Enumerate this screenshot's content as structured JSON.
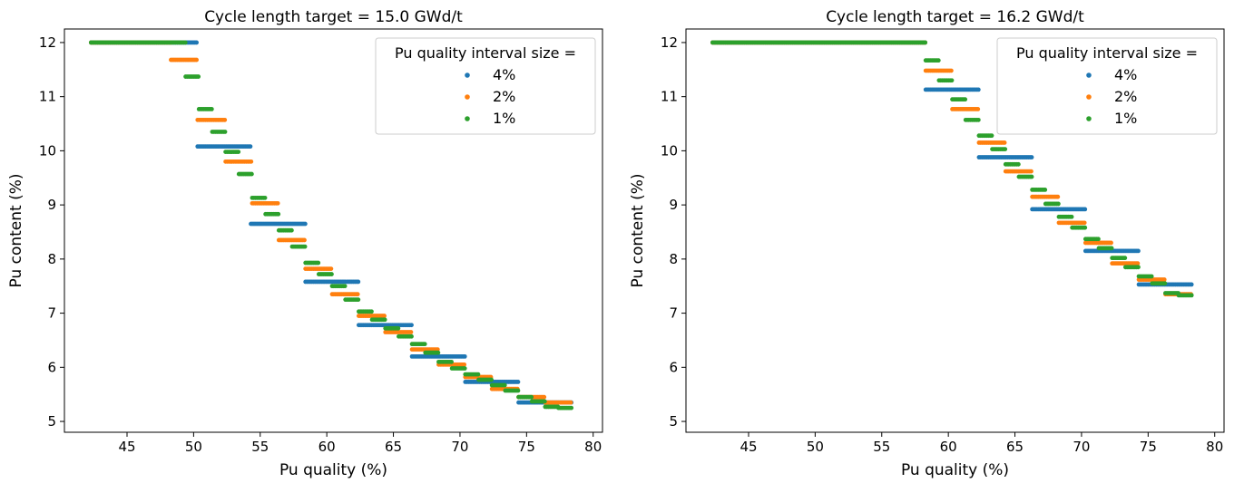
{
  "chart_data": [
    {
      "type": "scatter",
      "title": "Cycle length target = 15.0 GWd/t",
      "xlabel": "Pu quality (%)",
      "ylabel": "Pu content (%)",
      "xlim": [
        40.3,
        80.7
      ],
      "ylim": [
        4.8,
        12.25
      ],
      "xticks": [
        45,
        50,
        55,
        60,
        65,
        70,
        75,
        80
      ],
      "yticks": [
        5,
        6,
        7,
        8,
        9,
        10,
        11,
        12
      ],
      "grid": false,
      "legend": {
        "title": "Pu quality interval size =",
        "placement": "top-right",
        "entries": [
          "4%",
          "2%",
          "1%"
        ]
      },
      "series": [
        {
          "name": "4%",
          "color": "#1f77b4",
          "segments": [
            [
              42.3,
              50.3,
              12.0
            ],
            [
              50.3,
              54.3,
              10.08
            ],
            [
              54.3,
              58.4,
              8.65
            ],
            [
              58.4,
              62.4,
              7.58
            ],
            [
              62.4,
              66.4,
              6.78
            ],
            [
              66.4,
              70.4,
              6.2
            ],
            [
              70.4,
              74.4,
              5.73
            ],
            [
              74.4,
              78.4,
              5.35
            ]
          ]
        },
        {
          "name": "2%",
          "color": "#ff7f0e",
          "segments": [
            [
              42.3,
              48.3,
              12.0
            ],
            [
              48.3,
              50.3,
              11.68
            ],
            [
              50.3,
              52.4,
              10.57
            ],
            [
              52.4,
              54.4,
              9.8
            ],
            [
              54.4,
              56.4,
              9.03
            ],
            [
              56.4,
              58.4,
              8.35
            ],
            [
              58.4,
              60.4,
              7.82
            ],
            [
              60.4,
              62.4,
              7.35
            ],
            [
              62.4,
              64.4,
              6.95
            ],
            [
              64.4,
              66.4,
              6.65
            ],
            [
              66.4,
              68.4,
              6.33
            ],
            [
              68.4,
              70.4,
              6.05
            ],
            [
              70.4,
              72.4,
              5.82
            ],
            [
              72.4,
              74.4,
              5.6
            ],
            [
              74.4,
              76.4,
              5.45
            ],
            [
              76.4,
              78.4,
              5.35
            ]
          ]
        },
        {
          "name": "1%",
          "color": "#2ca02c",
          "segments": [
            [
              42.3,
              49.4,
              12.0
            ],
            [
              49.4,
              50.4,
              11.37
            ],
            [
              50.4,
              51.4,
              10.77
            ],
            [
              51.4,
              52.4,
              10.35
            ],
            [
              52.4,
              53.4,
              9.98
            ],
            [
              53.4,
              54.4,
              9.57
            ],
            [
              54.4,
              55.4,
              9.13
            ],
            [
              55.4,
              56.4,
              8.83
            ],
            [
              56.4,
              57.4,
              8.53
            ],
            [
              57.4,
              58.4,
              8.23
            ],
            [
              58.4,
              59.4,
              7.93
            ],
            [
              59.4,
              60.4,
              7.72
            ],
            [
              60.4,
              61.4,
              7.5
            ],
            [
              61.4,
              62.4,
              7.25
            ],
            [
              62.4,
              63.4,
              7.03
            ],
            [
              63.4,
              64.4,
              6.88
            ],
            [
              64.4,
              65.4,
              6.72
            ],
            [
              65.4,
              66.4,
              6.57
            ],
            [
              66.4,
              67.4,
              6.43
            ],
            [
              67.4,
              68.4,
              6.27
            ],
            [
              68.4,
              69.4,
              6.1
            ],
            [
              69.4,
              70.4,
              5.98
            ],
            [
              70.4,
              71.4,
              5.87
            ],
            [
              71.4,
              72.4,
              5.77
            ],
            [
              72.4,
              73.4,
              5.67
            ],
            [
              73.4,
              74.4,
              5.57
            ],
            [
              74.4,
              75.4,
              5.45
            ],
            [
              75.4,
              76.4,
              5.37
            ],
            [
              76.4,
              77.4,
              5.27
            ],
            [
              77.4,
              78.4,
              5.25
            ]
          ]
        }
      ]
    },
    {
      "type": "scatter",
      "title": "Cycle length target = 16.2 GWd/t",
      "xlabel": "Pu quality (%)",
      "ylabel": "Pu content (%)",
      "xlim": [
        40.3,
        80.7
      ],
      "ylim": [
        4.8,
        12.25
      ],
      "xticks": [
        45,
        50,
        55,
        60,
        65,
        70,
        75,
        80
      ],
      "yticks": [
        5,
        6,
        7,
        8,
        9,
        10,
        11,
        12
      ],
      "grid": false,
      "legend": {
        "title": "Pu quality interval size =",
        "placement": "top-right",
        "entries": [
          "4%",
          "2%",
          "1%"
        ]
      },
      "series": [
        {
          "name": "4%",
          "color": "#1f77b4",
          "segments": [
            [
              42.3,
              58.3,
              12.0
            ],
            [
              58.3,
              62.3,
              11.13
            ],
            [
              62.3,
              66.3,
              9.88
            ],
            [
              66.3,
              70.3,
              8.92
            ],
            [
              70.3,
              74.3,
              8.15
            ],
            [
              74.3,
              78.3,
              7.53
            ]
          ]
        },
        {
          "name": "2%",
          "color": "#ff7f0e",
          "segments": [
            [
              42.3,
              58.3,
              12.0
            ],
            [
              58.3,
              60.3,
              11.48
            ],
            [
              60.3,
              62.3,
              10.77
            ],
            [
              62.3,
              64.3,
              10.15
            ],
            [
              64.3,
              66.3,
              9.62
            ],
            [
              66.3,
              68.3,
              9.15
            ],
            [
              68.3,
              70.3,
              8.67
            ],
            [
              70.3,
              72.3,
              8.3
            ],
            [
              72.3,
              74.3,
              7.92
            ],
            [
              74.3,
              76.3,
              7.62
            ],
            [
              76.3,
              78.3,
              7.35
            ]
          ]
        },
        {
          "name": "1%",
          "color": "#2ca02c",
          "segments": [
            [
              42.3,
              58.3,
              12.0
            ],
            [
              58.3,
              59.3,
              11.67
            ],
            [
              59.3,
              60.3,
              11.3
            ],
            [
              60.3,
              61.3,
              10.95
            ],
            [
              61.3,
              62.3,
              10.57
            ],
            [
              62.3,
              63.3,
              10.28
            ],
            [
              63.3,
              64.3,
              10.03
            ],
            [
              64.3,
              65.3,
              9.75
            ],
            [
              65.3,
              66.3,
              9.52
            ],
            [
              66.3,
              67.3,
              9.28
            ],
            [
              67.3,
              68.3,
              9.02
            ],
            [
              68.3,
              69.3,
              8.78
            ],
            [
              69.3,
              70.3,
              8.58
            ],
            [
              70.3,
              71.3,
              8.37
            ],
            [
              71.3,
              72.3,
              8.2
            ],
            [
              72.3,
              73.3,
              8.02
            ],
            [
              73.3,
              74.3,
              7.85
            ],
            [
              74.3,
              75.3,
              7.68
            ],
            [
              75.3,
              76.3,
              7.55
            ],
            [
              76.3,
              77.3,
              7.37
            ],
            [
              77.3,
              78.3,
              7.33
            ]
          ]
        }
      ]
    }
  ]
}
